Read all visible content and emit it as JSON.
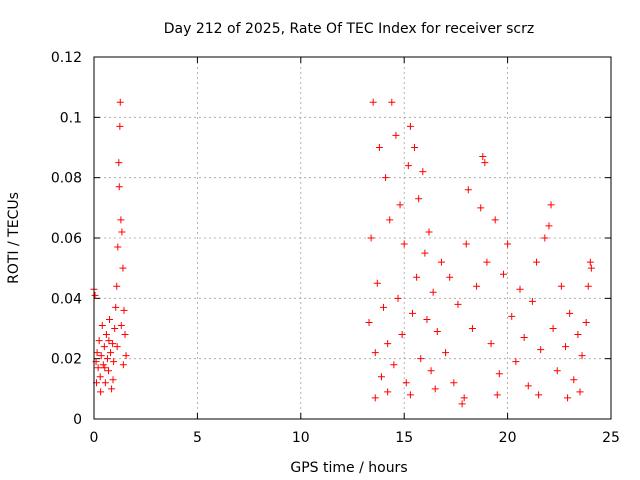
{
  "chart_data": {
    "type": "scatter",
    "title": "Day 212 of 2025, Rate Of TEC Index for receiver scrz",
    "xlabel": "GPS time / hours",
    "ylabel": "ROTI / TECUs",
    "xlim": [
      0,
      25
    ],
    "ylim": [
      0,
      0.12
    ],
    "grid": true,
    "marker": "+",
    "color": "#ff0000",
    "x_ticks": [
      0,
      5,
      10,
      15,
      20,
      25
    ],
    "x_tick_labels": [
      "0",
      "5",
      "10",
      "15",
      "20",
      "25"
    ],
    "y_ticks": [
      0,
      0.02,
      0.04,
      0.06,
      0.08,
      0.1,
      0.12
    ],
    "y_tick_labels": [
      "0",
      "0.02",
      "0.04",
      "0.06",
      "0.08",
      "0.1",
      "0.12"
    ],
    "series": [
      {
        "name": "ROTI",
        "points": [
          [
            0.0,
            0.043
          ],
          [
            0.05,
            0.041
          ],
          [
            0.1,
            0.019
          ],
          [
            0.15,
            0.022
          ],
          [
            0.2,
            0.017
          ],
          [
            0.25,
            0.026
          ],
          [
            0.3,
            0.014
          ],
          [
            0.35,
            0.021
          ],
          [
            0.4,
            0.031
          ],
          [
            0.45,
            0.018
          ],
          [
            0.5,
            0.024
          ],
          [
            0.55,
            0.012
          ],
          [
            0.6,
            0.028
          ],
          [
            0.65,
            0.02
          ],
          [
            0.7,
            0.016
          ],
          [
            0.75,
            0.033
          ],
          [
            0.8,
            0.022
          ],
          [
            0.85,
            0.01
          ],
          [
            0.9,
            0.025
          ],
          [
            0.95,
            0.019
          ],
          [
            1.0,
            0.03
          ],
          [
            1.05,
            0.037
          ],
          [
            1.1,
            0.044
          ],
          [
            1.15,
            0.057
          ],
          [
            1.2,
            0.085
          ],
          [
            1.22,
            0.077
          ],
          [
            1.25,
            0.097
          ],
          [
            1.27,
            0.105
          ],
          [
            1.3,
            0.066
          ],
          [
            1.35,
            0.062
          ],
          [
            1.4,
            0.05
          ],
          [
            1.45,
            0.036
          ],
          [
            1.5,
            0.028
          ],
          [
            1.55,
            0.021
          ],
          [
            0.12,
            0.012
          ],
          [
            0.32,
            0.009
          ],
          [
            0.52,
            0.017
          ],
          [
            0.72,
            0.026
          ],
          [
            0.92,
            0.013
          ],
          [
            1.12,
            0.024
          ],
          [
            1.32,
            0.031
          ],
          [
            1.42,
            0.018
          ],
          [
            13.3,
            0.032
          ],
          [
            13.4,
            0.06
          ],
          [
            13.5,
            0.105
          ],
          [
            13.6,
            0.022
          ],
          [
            13.7,
            0.045
          ],
          [
            13.8,
            0.09
          ],
          [
            13.9,
            0.014
          ],
          [
            14.0,
            0.037
          ],
          [
            14.1,
            0.08
          ],
          [
            14.2,
            0.025
          ],
          [
            14.3,
            0.066
          ],
          [
            14.4,
            0.105
          ],
          [
            14.5,
            0.018
          ],
          [
            14.6,
            0.094
          ],
          [
            14.7,
            0.04
          ],
          [
            14.8,
            0.071
          ],
          [
            14.9,
            0.028
          ],
          [
            15.0,
            0.058
          ],
          [
            15.1,
            0.012
          ],
          [
            15.2,
            0.084
          ],
          [
            15.3,
            0.097
          ],
          [
            15.4,
            0.035
          ],
          [
            15.5,
            0.09
          ],
          [
            15.6,
            0.047
          ],
          [
            15.7,
            0.073
          ],
          [
            15.8,
            0.02
          ],
          [
            15.9,
            0.082
          ],
          [
            16.0,
            0.055
          ],
          [
            16.1,
            0.033
          ],
          [
            16.2,
            0.062
          ],
          [
            16.3,
            0.016
          ],
          [
            16.4,
            0.042
          ],
          [
            16.6,
            0.029
          ],
          [
            16.8,
            0.052
          ],
          [
            17.0,
            0.022
          ],
          [
            17.2,
            0.047
          ],
          [
            17.4,
            0.012
          ],
          [
            17.6,
            0.038
          ],
          [
            17.8,
            0.005
          ],
          [
            18.0,
            0.058
          ],
          [
            18.1,
            0.076
          ],
          [
            18.3,
            0.03
          ],
          [
            18.5,
            0.044
          ],
          [
            18.7,
            0.07
          ],
          [
            18.8,
            0.087
          ],
          [
            18.9,
            0.085
          ],
          [
            19.0,
            0.052
          ],
          [
            19.2,
            0.025
          ],
          [
            19.4,
            0.066
          ],
          [
            19.6,
            0.015
          ],
          [
            19.8,
            0.048
          ],
          [
            20.0,
            0.058
          ],
          [
            20.2,
            0.034
          ],
          [
            20.4,
            0.019
          ],
          [
            20.6,
            0.043
          ],
          [
            20.8,
            0.027
          ],
          [
            21.0,
            0.011
          ],
          [
            21.2,
            0.039
          ],
          [
            21.4,
            0.052
          ],
          [
            21.6,
            0.023
          ],
          [
            21.8,
            0.06
          ],
          [
            22.0,
            0.064
          ],
          [
            22.1,
            0.071
          ],
          [
            22.2,
            0.03
          ],
          [
            22.4,
            0.016
          ],
          [
            22.6,
            0.044
          ],
          [
            22.8,
            0.024
          ],
          [
            23.0,
            0.035
          ],
          [
            23.2,
            0.013
          ],
          [
            23.4,
            0.028
          ],
          [
            23.6,
            0.021
          ],
          [
            23.8,
            0.032
          ],
          [
            23.9,
            0.044
          ],
          [
            24.0,
            0.052
          ],
          [
            24.05,
            0.05
          ],
          [
            23.5,
            0.009
          ],
          [
            22.9,
            0.007
          ],
          [
            21.5,
            0.008
          ],
          [
            19.5,
            0.008
          ],
          [
            17.9,
            0.007
          ],
          [
            16.5,
            0.01
          ],
          [
            15.3,
            0.008
          ],
          [
            14.2,
            0.009
          ],
          [
            13.6,
            0.007
          ]
        ]
      }
    ]
  }
}
